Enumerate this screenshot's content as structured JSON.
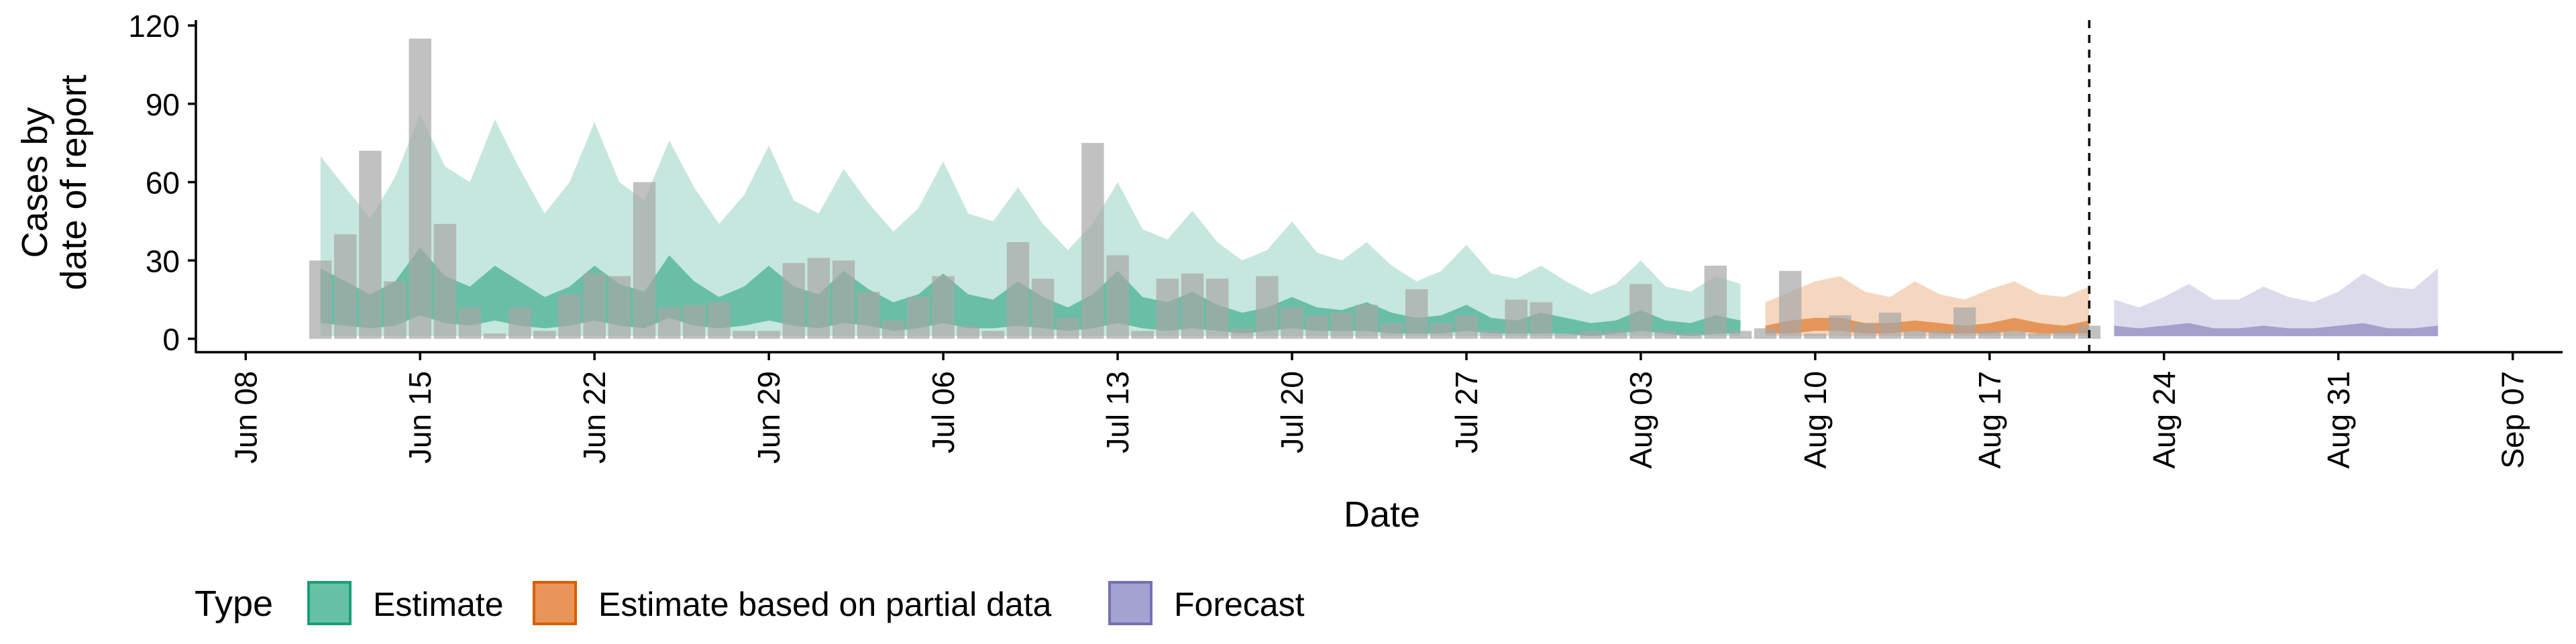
{
  "chart_data": {
    "type": "bar",
    "xlabel": "Date",
    "ylabel_lines": [
      "Cases by",
      "date of report"
    ],
    "ylim": [
      0,
      120
    ],
    "yticks": [
      0,
      30,
      60,
      90,
      120
    ],
    "xlim": [
      "2020-06-08",
      "2020-09-07"
    ],
    "xtick_labels": [
      {
        "date": "2020-06-08",
        "label": "Jun 08"
      },
      {
        "date": "2020-06-15",
        "label": "Jun 15"
      },
      {
        "date": "2020-06-22",
        "label": "Jun 22"
      },
      {
        "date": "2020-06-29",
        "label": "Jun 29"
      },
      {
        "date": "2020-07-06",
        "label": "Jul 06"
      },
      {
        "date": "2020-07-13",
        "label": "Jul 13"
      },
      {
        "date": "2020-07-20",
        "label": "Jul 20"
      },
      {
        "date": "2020-07-27",
        "label": "Jul 27"
      },
      {
        "date": "2020-08-03",
        "label": "Aug 03"
      },
      {
        "date": "2020-08-10",
        "label": "Aug 10"
      },
      {
        "date": "2020-08-17",
        "label": "Aug 17"
      },
      {
        "date": "2020-08-24",
        "label": "Aug 24"
      },
      {
        "date": "2020-08-31",
        "label": "Aug 31"
      },
      {
        "date": "2020-09-07",
        "label": "Sep 07"
      }
    ],
    "vline_date": "2020-08-21",
    "legend": {
      "title": "Type",
      "position": "bottom",
      "items": [
        {
          "label": "Estimate",
          "fill": "#66c2a5",
          "stroke": "#1b9e77"
        },
        {
          "label": "Estimate based on partial data",
          "fill": "#e8955a",
          "stroke": "#d95f02"
        },
        {
          "label": "Forecast",
          "fill": "#a4a2d0",
          "stroke": "#7570b3"
        }
      ]
    },
    "colors": {
      "bars_observed": "#a6a6a6",
      "estimate": "#1b9e77",
      "partial": "#d95f02",
      "forecast": "#7570b3"
    },
    "observed": {
      "dates": [
        "2020-06-11",
        "2020-06-12",
        "2020-06-13",
        "2020-06-14",
        "2020-06-15",
        "2020-06-16",
        "2020-06-17",
        "2020-06-18",
        "2020-06-19",
        "2020-06-20",
        "2020-06-21",
        "2020-06-22",
        "2020-06-23",
        "2020-06-24",
        "2020-06-25",
        "2020-06-26",
        "2020-06-27",
        "2020-06-28",
        "2020-06-29",
        "2020-06-30",
        "2020-07-01",
        "2020-07-02",
        "2020-07-03",
        "2020-07-04",
        "2020-07-05",
        "2020-07-06",
        "2020-07-07",
        "2020-07-08",
        "2020-07-09",
        "2020-07-10",
        "2020-07-11",
        "2020-07-12",
        "2020-07-13",
        "2020-07-14",
        "2020-07-15",
        "2020-07-16",
        "2020-07-17",
        "2020-07-18",
        "2020-07-19",
        "2020-07-20",
        "2020-07-21",
        "2020-07-22",
        "2020-07-23",
        "2020-07-24",
        "2020-07-25",
        "2020-07-26",
        "2020-07-27",
        "2020-07-28",
        "2020-07-29",
        "2020-07-30",
        "2020-07-31",
        "2020-08-01",
        "2020-08-02",
        "2020-08-03",
        "2020-08-04",
        "2020-08-05",
        "2020-08-06",
        "2020-08-07",
        "2020-08-08",
        "2020-08-09",
        "2020-08-10",
        "2020-08-11",
        "2020-08-12",
        "2020-08-13",
        "2020-08-14",
        "2020-08-15",
        "2020-08-16",
        "2020-08-17",
        "2020-08-18",
        "2020-08-19",
        "2020-08-20",
        "2020-08-21"
      ],
      "values": [
        30,
        40,
        72,
        22,
        115,
        44,
        12,
        2,
        12,
        3,
        17,
        25,
        24,
        60,
        12,
        13,
        14,
        3,
        3,
        29,
        31,
        30,
        18,
        7,
        16,
        24,
        5,
        3,
        37,
        23,
        8,
        75,
        32,
        3,
        23,
        25,
        23,
        4,
        24,
        12,
        9,
        10,
        13,
        6,
        19,
        6,
        9,
        3,
        15,
        14,
        2,
        3,
        3,
        21,
        3,
        2,
        28,
        3,
        4,
        26,
        2,
        9,
        6,
        10,
        3,
        3,
        12,
        3,
        3,
        2,
        3,
        5
      ]
    },
    "estimate": {
      "dates": [
        "2020-06-11",
        "2020-06-12",
        "2020-06-13",
        "2020-06-14",
        "2020-06-15",
        "2020-06-16",
        "2020-06-17",
        "2020-06-18",
        "2020-06-19",
        "2020-06-20",
        "2020-06-21",
        "2020-06-22",
        "2020-06-23",
        "2020-06-24",
        "2020-06-25",
        "2020-06-26",
        "2020-06-27",
        "2020-06-28",
        "2020-06-29",
        "2020-06-30",
        "2020-07-01",
        "2020-07-02",
        "2020-07-03",
        "2020-07-04",
        "2020-07-05",
        "2020-07-06",
        "2020-07-07",
        "2020-07-08",
        "2020-07-09",
        "2020-07-10",
        "2020-07-11",
        "2020-07-12",
        "2020-07-13",
        "2020-07-14",
        "2020-07-15",
        "2020-07-16",
        "2020-07-17",
        "2020-07-18",
        "2020-07-19",
        "2020-07-20",
        "2020-07-21",
        "2020-07-22",
        "2020-07-23",
        "2020-07-24",
        "2020-07-25",
        "2020-07-26",
        "2020-07-27",
        "2020-07-28",
        "2020-07-29",
        "2020-07-30",
        "2020-07-31",
        "2020-08-01",
        "2020-08-02",
        "2020-08-03",
        "2020-08-04",
        "2020-08-05",
        "2020-08-06",
        "2020-08-07"
      ],
      "outer_upper": [
        70,
        58,
        46,
        62,
        86,
        66,
        60,
        84,
        65,
        48,
        60,
        83,
        60,
        53,
        76,
        58,
        44,
        55,
        74,
        53,
        48,
        65,
        52,
        41,
        50,
        68,
        48,
        45,
        58,
        44,
        34,
        44,
        60,
        42,
        38,
        49,
        37,
        30,
        34,
        45,
        33,
        30,
        37,
        28,
        22,
        26,
        36,
        25,
        23,
        28,
        22,
        17,
        21,
        30,
        20,
        18,
        24,
        21
      ],
      "outer_lower": [
        1,
        1,
        1,
        1,
        1,
        1,
        1,
        1,
        1,
        1,
        1,
        1,
        1,
        1,
        1,
        1,
        1,
        1,
        1,
        1,
        1,
        1,
        1,
        1,
        1,
        1,
        1,
        1,
        1,
        1,
        1,
        1,
        1,
        1,
        1,
        1,
        1,
        1,
        1,
        1,
        1,
        1,
        1,
        1,
        1,
        1,
        1,
        1,
        1,
        1,
        1,
        1,
        1,
        1,
        1,
        1,
        1,
        1
      ],
      "inner_upper": [
        27,
        22,
        17,
        22,
        35,
        24,
        20,
        28,
        22,
        16,
        20,
        28,
        21,
        18,
        32,
        22,
        16,
        20,
        28,
        20,
        17,
        26,
        19,
        14,
        17,
        25,
        17,
        15,
        22,
        16,
        12,
        17,
        26,
        16,
        14,
        18,
        13,
        10,
        12,
        16,
        12,
        11,
        14,
        10,
        8,
        9,
        13,
        8,
        7,
        10,
        8,
        6,
        7,
        11,
        7,
        6,
        9,
        7
      ],
      "inner_lower": [
        6,
        5,
        4,
        5,
        9,
        6,
        5,
        7,
        5,
        4,
        5,
        7,
        5,
        4,
        8,
        5,
        4,
        5,
        7,
        5,
        4,
        6,
        5,
        3,
        4,
        6,
        4,
        4,
        5,
        4,
        3,
        4,
        6,
        4,
        3,
        4,
        3,
        2,
        3,
        4,
        3,
        3,
        3,
        2,
        2,
        2,
        3,
        2,
        2,
        2,
        2,
        1,
        2,
        3,
        2,
        1,
        2,
        2
      ]
    },
    "partial": {
      "dates": [
        "2020-08-08",
        "2020-08-09",
        "2020-08-10",
        "2020-08-11",
        "2020-08-12",
        "2020-08-13",
        "2020-08-14",
        "2020-08-15",
        "2020-08-16",
        "2020-08-17",
        "2020-08-18",
        "2020-08-19",
        "2020-08-20",
        "2020-08-21"
      ],
      "outer_upper": [
        14,
        18,
        22,
        24,
        18,
        16,
        22,
        17,
        15,
        19,
        22,
        17,
        16,
        20
      ],
      "outer_lower": [
        1,
        1,
        1,
        1,
        1,
        1,
        1,
        1,
        1,
        1,
        1,
        1,
        1,
        1
      ],
      "inner_upper": [
        5,
        7,
        8,
        8,
        6,
        6,
        7,
        6,
        5,
        6,
        8,
        6,
        5,
        7
      ],
      "inner_lower": [
        2,
        2,
        3,
        3,
        2,
        2,
        3,
        2,
        2,
        2,
        3,
        2,
        2,
        2
      ]
    },
    "forecast": {
      "dates": [
        "2020-08-22",
        "2020-08-23",
        "2020-08-24",
        "2020-08-25",
        "2020-08-26",
        "2020-08-27",
        "2020-08-28",
        "2020-08-29",
        "2020-08-30",
        "2020-08-31",
        "2020-09-01",
        "2020-09-02",
        "2020-09-03",
        "2020-09-04"
      ],
      "outer_upper": [
        15,
        12,
        16,
        21,
        15,
        15,
        20,
        16,
        14,
        18,
        25,
        20,
        19,
        27
      ],
      "outer_lower": [
        1,
        1,
        1,
        1,
        1,
        1,
        1,
        1,
        1,
        1,
        1,
        1,
        1,
        1
      ],
      "inner_upper": [
        5,
        4,
        5,
        6,
        4,
        4,
        5,
        4,
        4,
        5,
        6,
        4,
        4,
        5
      ],
      "inner_lower": [
        1,
        1,
        1,
        1,
        1,
        1,
        1,
        1,
        1,
        1,
        1,
        1,
        1,
        1
      ]
    }
  }
}
